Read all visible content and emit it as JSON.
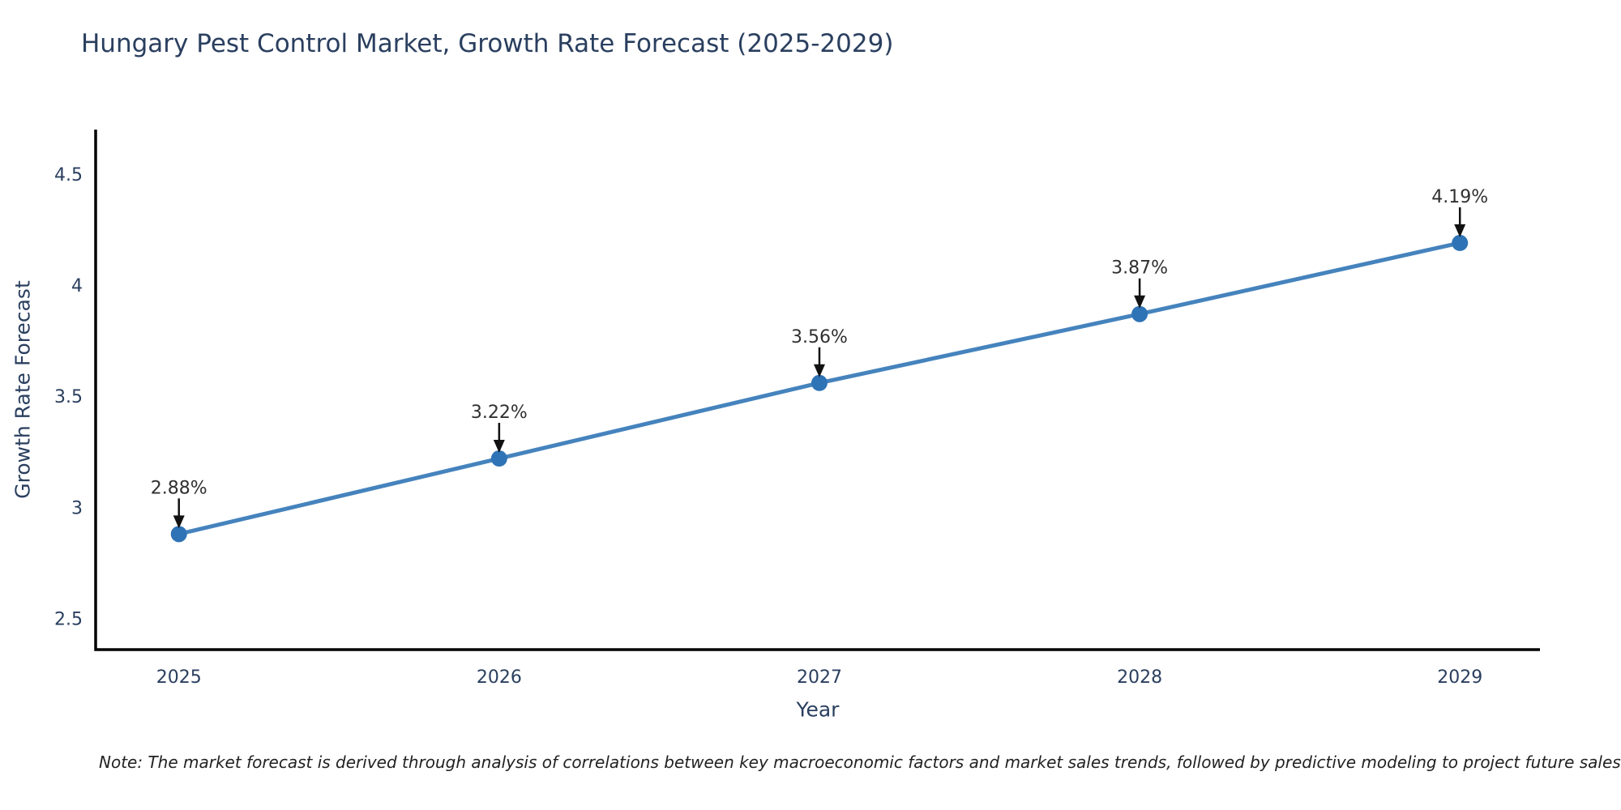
{
  "chart_data": {
    "type": "line",
    "title": "Hungary Pest Control Market, Growth Rate Forecast (2025-2029)",
    "xlabel": "Year",
    "ylabel": "Growth Rate Forecast",
    "x": [
      2025,
      2026,
      2027,
      2028,
      2029
    ],
    "y": [
      2.88,
      3.22,
      3.56,
      3.87,
      4.19
    ],
    "point_labels": [
      "2.88%",
      "3.22%",
      "3.56%",
      "3.87%",
      "4.19%"
    ],
    "xtick_labels": [
      "2025",
      "2026",
      "2027",
      "2028",
      "2029"
    ],
    "ytick_values": [
      2.5,
      3,
      3.5,
      4,
      4.5
    ],
    "ytick_labels": [
      "2.5",
      "3",
      "3.5",
      "4",
      "4.5"
    ],
    "xlim": [
      2024.74,
      2029.25
    ],
    "ylim": [
      2.36,
      4.7
    ],
    "grid": false,
    "legend": "none",
    "colors": {
      "line": "#4583bd",
      "marker": "#2e73b5",
      "annotation_arrow": "#111111",
      "annotation_text": "#303030",
      "axis_line": "#000000",
      "tick_text": "#2a3f5f",
      "title_text": "#2a3f5f"
    }
  },
  "note": {
    "text": "Note: The market forecast is derived through analysis of correlations between key macroeconomic factors and market sales trends, followed by predictive modeling to project future sales"
  }
}
